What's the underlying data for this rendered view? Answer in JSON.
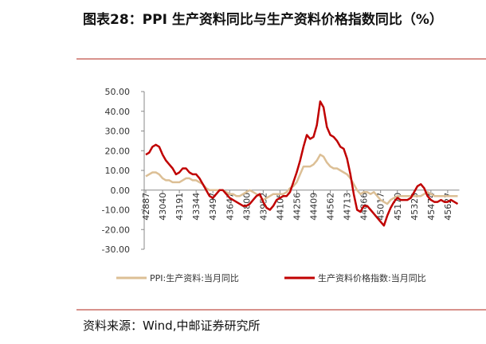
{
  "chart_data": {
    "type": "line",
    "title": "图表28：PPI 生产资料同比与生产资料价格指数同比（%）",
    "source": "资料来源：Wind,中邮证券研究所",
    "categories": [
      "42887",
      null,
      null,
      null,
      null,
      "43040",
      null,
      null,
      null,
      null,
      "43191",
      null,
      null,
      null,
      null,
      "43344",
      null,
      null,
      null,
      null,
      "43497",
      null,
      null,
      null,
      null,
      "43647",
      null,
      null,
      null,
      null,
      "43800",
      null,
      null,
      null,
      null,
      "43952",
      null,
      null,
      null,
      null,
      "44105",
      null,
      null,
      null,
      null,
      "44256",
      null,
      null,
      null,
      null,
      "44409",
      null,
      null,
      null,
      null,
      "44562",
      null,
      null,
      null,
      null,
      "44713",
      null,
      null,
      null,
      null,
      "44866",
      null,
      null,
      null,
      null,
      "45017",
      null,
      null,
      null,
      null,
      "45170",
      null,
      null,
      null,
      null,
      "45323",
      null,
      null,
      null,
      null,
      "45474",
      null,
      null,
      null,
      null,
      "45627",
      null,
      null,
      null
    ],
    "series": [
      {
        "name": "PPI:生产资料:当月同比",
        "color": "#dcbf95",
        "values": [
          7,
          8,
          9,
          9,
          8,
          6,
          5,
          5,
          4,
          4,
          4,
          5,
          6,
          6,
          5,
          5,
          4,
          3,
          1,
          0,
          0,
          0,
          0,
          0,
          -1,
          -2,
          -2,
          -3,
          -3,
          -2,
          -1,
          0,
          -1,
          -2,
          -3,
          -5,
          -4,
          -3,
          -2,
          -2,
          -2,
          -2,
          -1,
          1,
          2,
          4,
          8,
          12,
          12,
          12,
          13,
          15,
          18,
          17,
          14,
          12,
          11,
          11,
          10,
          9,
          8,
          6,
          3,
          0,
          -2,
          -1,
          -1,
          -2,
          -1,
          -3,
          -5,
          -6,
          -7,
          -5,
          -4,
          -3,
          -3,
          -3,
          -3,
          -3,
          -3,
          -3,
          -3,
          -2,
          -1,
          -2,
          -3,
          -3,
          -3,
          -3,
          -3,
          -3,
          -3,
          -3
        ]
      },
      {
        "name": "生产资料价格指数:当月同比",
        "color": "#c00000",
        "values": [
          18,
          19,
          22,
          23,
          22,
          18,
          15,
          13,
          11,
          8,
          9,
          11,
          11,
          9,
          8,
          8,
          6,
          3,
          0,
          -3,
          -4,
          -2,
          0,
          0,
          -2,
          -4,
          -5,
          -6,
          -7,
          -8,
          -8,
          -7,
          -5,
          -3,
          -2,
          -6,
          -9,
          -10,
          -8,
          -5,
          -4,
          -3,
          -3,
          -1,
          4,
          9,
          15,
          22,
          28,
          26,
          27,
          33,
          45,
          42,
          32,
          28,
          27,
          25,
          22,
          21,
          16,
          8,
          -2,
          -10,
          -11,
          -8,
          -8,
          -10,
          -12,
          -14,
          -16,
          -18,
          -13,
          -9,
          -6,
          -4,
          -5,
          -5,
          -5,
          -4,
          -1,
          2,
          3,
          1,
          -3,
          -5,
          -6,
          -6,
          -5,
          -6,
          -6,
          -5,
          -6,
          -7
        ]
      }
    ],
    "ylim": [
      -30,
      50
    ],
    "yticks": [
      {
        "value": 50,
        "label": "50.00"
      },
      {
        "value": 40,
        "label": "40.00"
      },
      {
        "value": 30,
        "label": "30.00"
      },
      {
        "value": 20,
        "label": "20.00"
      },
      {
        "value": 10,
        "label": "10.00"
      },
      {
        "value": 0,
        "label": "0.00"
      },
      {
        "value": -10,
        "label": "-10.00"
      },
      {
        "value": -20,
        "label": "-20.00"
      },
      {
        "value": -30,
        "label": "-30.00"
      }
    ],
    "legend": "bottom"
  }
}
